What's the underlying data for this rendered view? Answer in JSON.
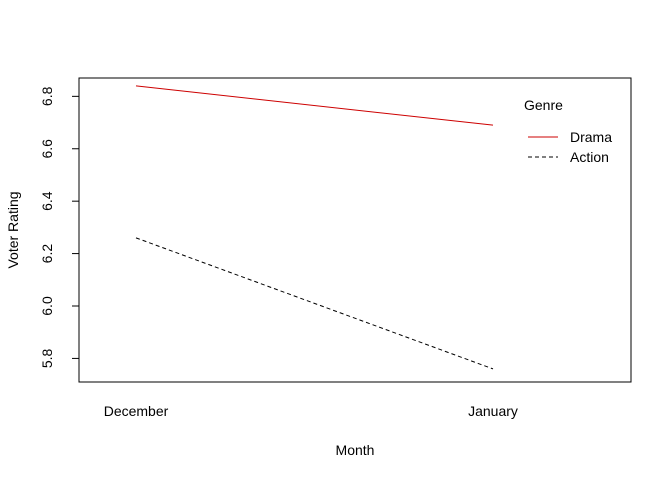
{
  "chart_data": {
    "type": "line",
    "categories": [
      "December",
      "January"
    ],
    "xlabel": "Month",
    "ylabel": "Voter Rating",
    "ylim": [
      5.71,
      6.87
    ],
    "yticks": [
      "5.8",
      "6.0",
      "6.2",
      "6.4",
      "6.6",
      "6.8"
    ],
    "legend": {
      "title": "Genre",
      "placement": "top-right",
      "frame": false
    },
    "grid": false,
    "series": [
      {
        "name": "Drama",
        "values": [
          6.84,
          6.69
        ],
        "color": "#cd0000",
        "dash": "solid"
      },
      {
        "name": "Action",
        "values": [
          6.26,
          5.76
        ],
        "color": "#000000",
        "dash": "dashed"
      }
    ]
  }
}
